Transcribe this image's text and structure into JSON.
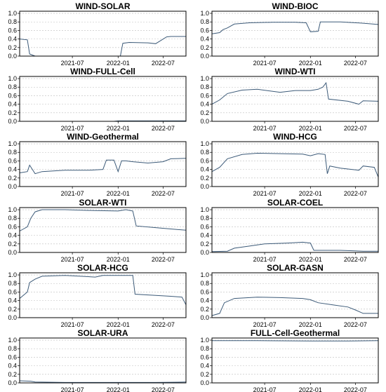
{
  "x_ticks": [
    "2021-07",
    "2022-01",
    "2022-07"
  ],
  "y_ticks": [
    "0.0",
    "0.2",
    "0.4",
    "0.6",
    "0.8",
    "1.0"
  ],
  "colors": {
    "line": "#3c5a78",
    "grid": "#bdbdbd",
    "frame": "#000000"
  },
  "chart_data": [
    {
      "type": "line",
      "title": "WIND-SOLAR",
      "x_range": [
        "2020-12",
        "2022-10"
      ],
      "ylim": [
        0,
        1.05
      ],
      "grid": true,
      "series": [
        {
          "x": [
            "2020-12-01",
            "2021-01-01",
            "2021-01-10",
            "2021-02-01",
            "2021-06-01",
            "2021-12-01",
            "2022-01-10",
            "2022-01-20",
            "2022-02-15",
            "2022-05-01",
            "2022-06-01",
            "2022-07-15",
            "2022-08-01",
            "2022-10-01"
          ],
          "y": [
            0.4,
            0.38,
            0.05,
            0.0,
            0.0,
            0.0,
            0.0,
            0.3,
            0.32,
            0.31,
            0.29,
            0.45,
            0.46,
            0.46
          ]
        }
      ]
    },
    {
      "type": "line",
      "title": "WIND-BIOC",
      "x_range": [
        "2020-12",
        "2022-10"
      ],
      "ylim": [
        0,
        1.05
      ],
      "grid": true,
      "series": [
        {
          "x": [
            "2020-12-01",
            "2021-01-01",
            "2021-01-15",
            "2021-02-01",
            "2021-03-01",
            "2021-05-01",
            "2021-08-01",
            "2021-11-01",
            "2021-12-15",
            "2022-01-01",
            "2022-02-01",
            "2022-02-10",
            "2022-05-01",
            "2022-08-01",
            "2022-10-01"
          ],
          "y": [
            0.52,
            0.55,
            0.62,
            0.66,
            0.75,
            0.78,
            0.79,
            0.79,
            0.78,
            0.57,
            0.58,
            0.8,
            0.8,
            0.77,
            0.74
          ]
        }
      ]
    },
    {
      "type": "line",
      "title": "WIND-FULL-Cell",
      "x_range": [
        "2020-12",
        "2022-10"
      ],
      "ylim": [
        0,
        1.05
      ],
      "grid": true,
      "series": [
        {
          "x": [
            "2020-12-01",
            "2021-12-15",
            "2022-01-01",
            "2022-04-01",
            "2022-10-01"
          ],
          "y": [
            0.0,
            0.0,
            0.01,
            0.01,
            0.01
          ]
        }
      ]
    },
    {
      "type": "line",
      "title": "WIND-WTI",
      "x_range": [
        "2020-12",
        "2022-10"
      ],
      "ylim": [
        0,
        1.05
      ],
      "grid": true,
      "series": [
        {
          "x": [
            "2020-12-01",
            "2021-01-01",
            "2021-02-01",
            "2021-04-01",
            "2021-06-01",
            "2021-09-01",
            "2021-11-01",
            "2022-01-01",
            "2022-02-01",
            "2022-02-20",
            "2022-03-05",
            "2022-03-15",
            "2022-06-01",
            "2022-07-15",
            "2022-08-01",
            "2022-10-01"
          ],
          "y": [
            0.4,
            0.5,
            0.65,
            0.73,
            0.75,
            0.68,
            0.72,
            0.72,
            0.75,
            0.8,
            0.9,
            0.52,
            0.47,
            0.4,
            0.48,
            0.47
          ]
        }
      ]
    },
    {
      "type": "line",
      "title": "WIND-Geothermal",
      "x_range": [
        "2020-12",
        "2022-10"
      ],
      "ylim": [
        0,
        1.05
      ],
      "grid": true,
      "series": [
        {
          "x": [
            "2020-12-01",
            "2021-01-01",
            "2021-01-10",
            "2021-02-01",
            "2021-03-01",
            "2021-06-01",
            "2021-09-01",
            "2021-11-01",
            "2021-11-15",
            "2021-12-15",
            "2022-01-01",
            "2022-01-15",
            "2022-02-01",
            "2022-03-01",
            "2022-05-01",
            "2022-07-01",
            "2022-08-01",
            "2022-10-01"
          ],
          "y": [
            0.32,
            0.35,
            0.5,
            0.3,
            0.35,
            0.38,
            0.38,
            0.4,
            0.62,
            0.62,
            0.35,
            0.6,
            0.6,
            0.58,
            0.55,
            0.58,
            0.65,
            0.66
          ]
        }
      ]
    },
    {
      "type": "line",
      "title": "WIND-HCG",
      "x_range": [
        "2020-12",
        "2022-10"
      ],
      "ylim": [
        0,
        1.05
      ],
      "grid": true,
      "series": [
        {
          "x": [
            "2020-12-01",
            "2021-01-01",
            "2021-02-01",
            "2021-04-01",
            "2021-06-01",
            "2021-09-01",
            "2021-12-01",
            "2022-01-01",
            "2022-02-01",
            "2022-03-01",
            "2022-03-10",
            "2022-03-20",
            "2022-05-01",
            "2022-07-15",
            "2022-08-01",
            "2022-09-15",
            "2022-10-01"
          ],
          "y": [
            0.35,
            0.45,
            0.65,
            0.75,
            0.78,
            0.77,
            0.76,
            0.72,
            0.77,
            0.75,
            0.3,
            0.48,
            0.43,
            0.38,
            0.48,
            0.45,
            0.22
          ]
        }
      ]
    },
    {
      "type": "line",
      "title": "SOLAR-WTI",
      "x_range": [
        "2020-12",
        "2022-10"
      ],
      "ylim": [
        0,
        1.05
      ],
      "grid": true,
      "series": [
        {
          "x": [
            "2020-12-01",
            "2021-01-01",
            "2021-01-15",
            "2021-02-01",
            "2021-03-01",
            "2021-06-01",
            "2021-10-01",
            "2022-01-01",
            "2022-02-01",
            "2022-03-01",
            "2022-03-15",
            "2022-06-01",
            "2022-08-01",
            "2022-10-01"
          ],
          "y": [
            0.5,
            0.6,
            0.8,
            0.95,
            1.0,
            1.0,
            0.98,
            0.97,
            1.0,
            0.97,
            0.62,
            0.58,
            0.55,
            0.52
          ]
        }
      ]
    },
    {
      "type": "line",
      "title": "SOLAR-COEL",
      "x_range": [
        "2020-12",
        "2022-10"
      ],
      "ylim": [
        0,
        1.05
      ],
      "grid": true,
      "series": [
        {
          "x": [
            "2020-12-01",
            "2021-02-01",
            "2021-03-01",
            "2021-05-01",
            "2021-07-01",
            "2021-10-01",
            "2021-12-01",
            "2022-01-01",
            "2022-01-15",
            "2022-05-01",
            "2022-08-01",
            "2022-10-01"
          ],
          "y": [
            0.02,
            0.03,
            0.1,
            0.15,
            0.2,
            0.22,
            0.24,
            0.22,
            0.05,
            0.05,
            0.03,
            0.03
          ]
        }
      ]
    },
    {
      "type": "line",
      "title": "SOLAR-HCG",
      "x_range": [
        "2020-12",
        "2022-10"
      ],
      "ylim": [
        0,
        1.05
      ],
      "grid": true,
      "series": [
        {
          "x": [
            "2020-12-01",
            "2021-01-01",
            "2021-01-10",
            "2021-02-01",
            "2021-03-01",
            "2021-06-01",
            "2021-10-01",
            "2021-11-01",
            "2022-01-01",
            "2022-03-01",
            "2022-03-10",
            "2022-06-01",
            "2022-08-01",
            "2022-09-15",
            "2022-10-01"
          ],
          "y": [
            0.45,
            0.6,
            0.82,
            0.9,
            0.97,
            0.99,
            0.95,
            0.99,
            0.99,
            0.99,
            0.55,
            0.52,
            0.5,
            0.48,
            0.3
          ]
        }
      ]
    },
    {
      "type": "line",
      "title": "SOLAR-GASN",
      "x_range": [
        "2020-12",
        "2022-10"
      ],
      "ylim": [
        0,
        1.05
      ],
      "grid": true,
      "series": [
        {
          "x": [
            "2020-12-01",
            "2021-01-01",
            "2021-01-20",
            "2021-03-01",
            "2021-06-01",
            "2021-09-01",
            "2021-12-01",
            "2022-01-01",
            "2022-02-01",
            "2022-04-01",
            "2022-06-01",
            "2022-07-01",
            "2022-08-01",
            "2022-10-01"
          ],
          "y": [
            0.05,
            0.1,
            0.35,
            0.45,
            0.48,
            0.47,
            0.45,
            0.42,
            0.35,
            0.3,
            0.25,
            0.18,
            0.1,
            0.1
          ]
        }
      ]
    },
    {
      "type": "line",
      "title": "SOLAR-URA",
      "x_range": [
        "2020-12",
        "2022-10"
      ],
      "ylim": [
        0,
        1.05
      ],
      "grid": true,
      "series": [
        {
          "x": [
            "2020-12-01",
            "2021-01-15",
            "2021-02-01",
            "2021-06-01",
            "2021-12-01",
            "2022-06-01",
            "2022-10-01"
          ],
          "y": [
            0.05,
            0.04,
            0.02,
            0.01,
            0.01,
            0.01,
            0.02
          ]
        }
      ]
    },
    {
      "type": "line",
      "title": "FULL-Cell-Geothermal",
      "x_range": [
        "2020-12",
        "2022-10"
      ],
      "ylim": [
        0,
        1.05
      ],
      "grid": true,
      "series": [
        {
          "x": [
            "2020-12-01",
            "2021-06-01",
            "2022-01-01",
            "2022-06-01",
            "2022-10-01"
          ],
          "y": [
            0.99,
            0.99,
            0.98,
            0.98,
            0.99
          ]
        }
      ]
    }
  ]
}
